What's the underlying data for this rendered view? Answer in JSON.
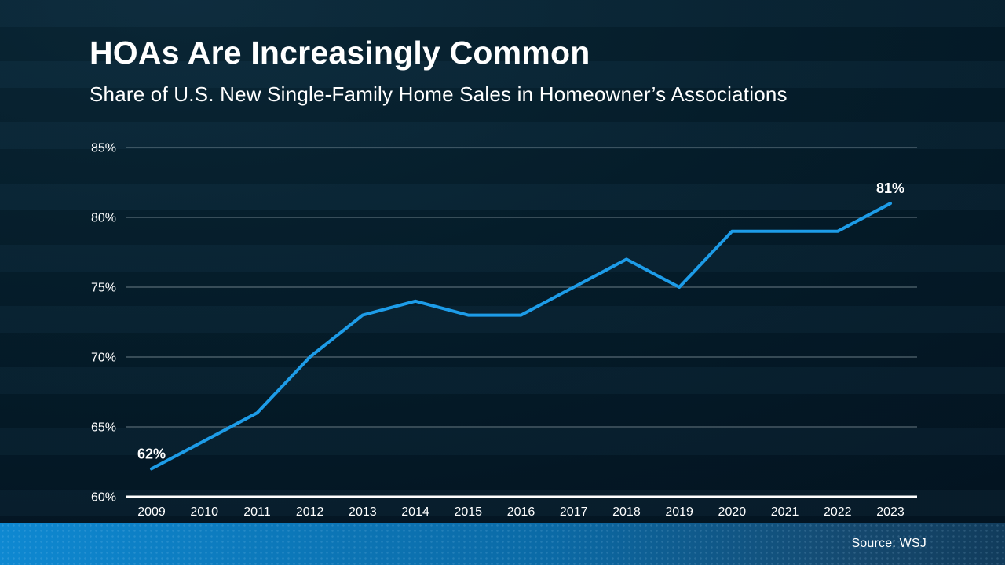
{
  "header": {
    "title": "HOAs Are Increasingly Common",
    "subtitle": "Share of U.S. New Single-Family Home Sales in Homeowner’s Associations"
  },
  "chart_data": {
    "type": "line",
    "title": "HOAs Are Increasingly Common",
    "subtitle": "Share of U.S. New Single-Family Home Sales in Homeowner’s Associations",
    "x": [
      2009,
      2010,
      2011,
      2012,
      2013,
      2014,
      2015,
      2016,
      2017,
      2018,
      2019,
      2020,
      2021,
      2022,
      2023
    ],
    "series": [
      {
        "name": "Share of U.S. new single-family home sales in HOAs",
        "values": [
          62,
          64,
          66,
          70,
          73,
          74,
          73,
          73,
          75,
          77,
          75,
          79,
          79,
          79,
          81
        ]
      }
    ],
    "ylim": [
      60,
      85
    ],
    "yticks": [
      60,
      65,
      70,
      75,
      80,
      85
    ],
    "ytick_suffix": "%",
    "grid": "horizontal",
    "legend": "none",
    "point_labels": [
      {
        "index": 0,
        "text": "62%"
      },
      {
        "index": 14,
        "text": "81%"
      }
    ]
  },
  "footer": {
    "source": "Source: WSJ"
  },
  "colors": {
    "line": "#1d9ce8",
    "point_label": "#2aa3ee",
    "gridline": "rgba(190,204,212,0.55)",
    "axis": "#ffffff",
    "tick_text": "#ffffff",
    "background": "#051e2c",
    "footer_left": "#0e88d1",
    "footer_right": "#113c5c"
  }
}
